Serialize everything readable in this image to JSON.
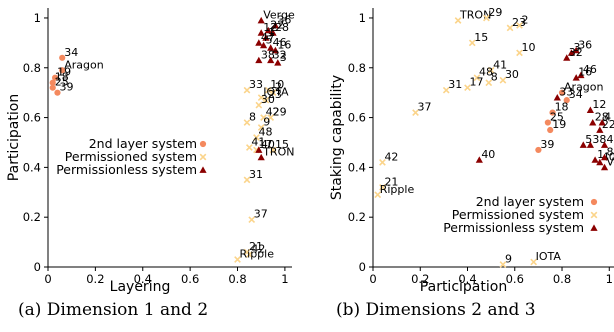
{
  "captions": [
    "(a) Dimension 1 and 2",
    "(b) Dimensions 2 and 3"
  ],
  "colors": {
    "layer2": "#f4895e",
    "permissioned": "#fbd48a",
    "permissionless": "#8b0000",
    "axis": "#000000"
  },
  "chart_data": [
    {
      "type": "scatter",
      "xlabel": "Layering",
      "ylabel": "Participation",
      "xlim": [
        0,
        1.03
      ],
      "ylim": [
        0,
        1.04
      ],
      "xticks": [
        0,
        0.2,
        0.4,
        0.6,
        0.8,
        1
      ],
      "yticks": [
        0,
        0.2,
        0.4,
        0.6,
        0.8,
        1
      ],
      "xtick_labels": [
        "0",
        "0.2",
        "0.4",
        "0.6",
        "0.8",
        "1"
      ],
      "ytick_labels": [
        "0",
        "0.2",
        "0.4",
        "0.6",
        "0.8",
        "1"
      ],
      "legend_position": "center-right",
      "series": [
        {
          "name": "2nd layer system",
          "marker": "circle",
          "color": "#f4895e",
          "points": [
            {
              "x": 0.06,
              "y": 0.84,
              "label": "34"
            },
            {
              "x": 0.06,
              "y": 0.79,
              "label": "Aragon"
            },
            {
              "x": 0.03,
              "y": 0.76,
              "label": "19"
            },
            {
              "x": 0.02,
              "y": 0.74,
              "label": "18"
            },
            {
              "x": 0.02,
              "y": 0.72,
              "label": "25"
            },
            {
              "x": 0.04,
              "y": 0.7,
              "label": "39"
            }
          ]
        },
        {
          "name": "Permissioned system",
          "marker": "x",
          "color": "#fbd48a",
          "points": [
            {
              "x": 0.84,
              "y": 0.71,
              "label": "33"
            },
            {
              "x": 0.93,
              "y": 0.71,
              "label": "10"
            },
            {
              "x": 0.95,
              "y": 0.7,
              "label": "2"
            },
            {
              "x": 0.9,
              "y": 0.68,
              "label": "IOTA"
            },
            {
              "x": 0.92,
              "y": 0.67,
              "label": "23"
            },
            {
              "x": 0.89,
              "y": 0.65,
              "label": "30"
            },
            {
              "x": 0.91,
              "y": 0.6,
              "label": "42"
            },
            {
              "x": 0.94,
              "y": 0.6,
              "label": "29"
            },
            {
              "x": 0.84,
              "y": 0.58,
              "label": "8"
            },
            {
              "x": 0.9,
              "y": 0.56,
              "label": "9"
            },
            {
              "x": 0.88,
              "y": 0.52,
              "label": "48"
            },
            {
              "x": 0.85,
              "y": 0.48,
              "label": "41"
            },
            {
              "x": 0.88,
              "y": 0.47,
              "label": "17"
            },
            {
              "x": 0.95,
              "y": 0.47,
              "label": "15"
            },
            {
              "x": 0.84,
              "y": 0.35,
              "label": "31"
            },
            {
              "x": 0.86,
              "y": 0.19,
              "label": "37"
            },
            {
              "x": 0.84,
              "y": 0.06,
              "label": "21"
            },
            {
              "x": 0.85,
              "y": 0.05,
              "label": "42"
            },
            {
              "x": 0.8,
              "y": 0.03,
              "label": "Ripple"
            }
          ]
        },
        {
          "name": "Permissionless system",
          "marker": "triangle",
          "color": "#8b0000",
          "points": [
            {
              "x": 0.9,
              "y": 0.99,
              "label": "Verge"
            },
            {
              "x": 0.96,
              "y": 0.97,
              "label": "36"
            },
            {
              "x": 0.93,
              "y": 0.95,
              "label": "22"
            },
            {
              "x": 0.95,
              "y": 0.94,
              "label": "28"
            },
            {
              "x": 0.9,
              "y": 0.94,
              "label": "12"
            },
            {
              "x": 0.92,
              "y": 0.92,
              "label": "1"
            },
            {
              "x": 0.89,
              "y": 0.9,
              "label": "47"
            },
            {
              "x": 0.91,
              "y": 0.89,
              "label": "5"
            },
            {
              "x": 0.94,
              "y": 0.88,
              "label": "46"
            },
            {
              "x": 0.96,
              "y": 0.87,
              "label": "16"
            },
            {
              "x": 0.89,
              "y": 0.83,
              "label": "38"
            },
            {
              "x": 0.94,
              "y": 0.83,
              "label": "32"
            },
            {
              "x": 0.97,
              "y": 0.82,
              "label": "3"
            },
            {
              "x": 0.89,
              "y": 0.47,
              "label": "40"
            },
            {
              "x": 0.9,
              "y": 0.44,
              "label": "TRON"
            }
          ]
        }
      ]
    },
    {
      "type": "scatter",
      "xlabel": "Participation",
      "ylabel": "Staking capability",
      "xlim": [
        0,
        1.02
      ],
      "ylim": [
        0,
        1.04
      ],
      "xticks": [
        0,
        0.2,
        0.4,
        0.6,
        0.8,
        1
      ],
      "yticks": [
        0,
        0.2,
        0.4,
        0.6,
        0.8,
        1
      ],
      "xtick_labels": [
        "0",
        "0.2",
        "0.4",
        "0.6",
        "0.8",
        "1"
      ],
      "ytick_labels": [
        "0",
        "0.2",
        "0.4",
        "0.6",
        "0.8",
        "1"
      ],
      "legend_position": "lower-right",
      "series": [
        {
          "name": "2nd layer system",
          "marker": "circle",
          "color": "#f4895e",
          "points": [
            {
              "x": 0.8,
              "y": 0.7,
              "label": "Aragon"
            },
            {
              "x": 0.82,
              "y": 0.67,
              "label": "34"
            },
            {
              "x": 0.76,
              "y": 0.62,
              "label": "18"
            },
            {
              "x": 0.74,
              "y": 0.58,
              "label": "25"
            },
            {
              "x": 0.75,
              "y": 0.55,
              "label": "19"
            },
            {
              "x": 0.7,
              "y": 0.47,
              "label": "39"
            }
          ]
        },
        {
          "name": "Permissioned system",
          "marker": "x",
          "color": "#fbd48a",
          "points": [
            {
              "x": 0.36,
              "y": 0.99,
              "label": "TRON"
            },
            {
              "x": 0.48,
              "y": 1.0,
              "label": "29"
            },
            {
              "x": 0.58,
              "y": 0.96,
              "label": "23"
            },
            {
              "x": 0.62,
              "y": 0.97,
              "label": "2"
            },
            {
              "x": 0.42,
              "y": 0.9,
              "label": "15"
            },
            {
              "x": 0.62,
              "y": 0.86,
              "label": "10"
            },
            {
              "x": 0.5,
              "y": 0.79,
              "label": "41"
            },
            {
              "x": 0.44,
              "y": 0.76,
              "label": "48"
            },
            {
              "x": 0.55,
              "y": 0.75,
              "label": "30"
            },
            {
              "x": 0.49,
              "y": 0.74,
              "label": "8"
            },
            {
              "x": 0.4,
              "y": 0.72,
              "label": "17"
            },
            {
              "x": 0.31,
              "y": 0.71,
              "label": "31"
            },
            {
              "x": 0.18,
              "y": 0.62,
              "label": "37"
            },
            {
              "x": 0.04,
              "y": 0.42,
              "label": "42"
            },
            {
              "x": 0.04,
              "y": 0.32,
              "label": "21"
            },
            {
              "x": 0.02,
              "y": 0.29,
              "label": "Ripple"
            },
            {
              "x": 0.55,
              "y": 0.01,
              "label": "9"
            },
            {
              "x": 0.68,
              "y": 0.02,
              "label": "IOTA"
            }
          ]
        },
        {
          "name": "Permissionless system",
          "marker": "triangle",
          "color": "#8b0000",
          "points": [
            {
              "x": 0.86,
              "y": 0.87,
              "label": "36"
            },
            {
              "x": 0.84,
              "y": 0.86,
              "label": "3"
            },
            {
              "x": 0.82,
              "y": 0.84,
              "label": "32"
            },
            {
              "x": 0.88,
              "y": 0.77,
              "label": "46"
            },
            {
              "x": 0.86,
              "y": 0.76,
              "label": "16"
            },
            {
              "x": 0.78,
              "y": 0.68,
              "label": "33"
            },
            {
              "x": 0.92,
              "y": 0.63,
              "label": "12"
            },
            {
              "x": 0.93,
              "y": 0.58,
              "label": "28"
            },
            {
              "x": 0.97,
              "y": 0.58,
              "label": "4"
            },
            {
              "x": 0.96,
              "y": 0.55,
              "label": "22"
            },
            {
              "x": 0.89,
              "y": 0.49,
              "label": "5"
            },
            {
              "x": 0.92,
              "y": 0.49,
              "label": "38"
            },
            {
              "x": 0.98,
              "y": 0.49,
              "label": "47"
            },
            {
              "x": 0.94,
              "y": 0.43,
              "label": "1"
            },
            {
              "x": 0.96,
              "y": 0.42,
              "label": "40"
            },
            {
              "x": 0.98,
              "y": 0.44,
              "label": "8"
            },
            {
              "x": 0.98,
              "y": 0.4,
              "label": "Verge"
            },
            {
              "x": 0.45,
              "y": 0.43,
              "label": "40"
            }
          ]
        }
      ]
    }
  ]
}
